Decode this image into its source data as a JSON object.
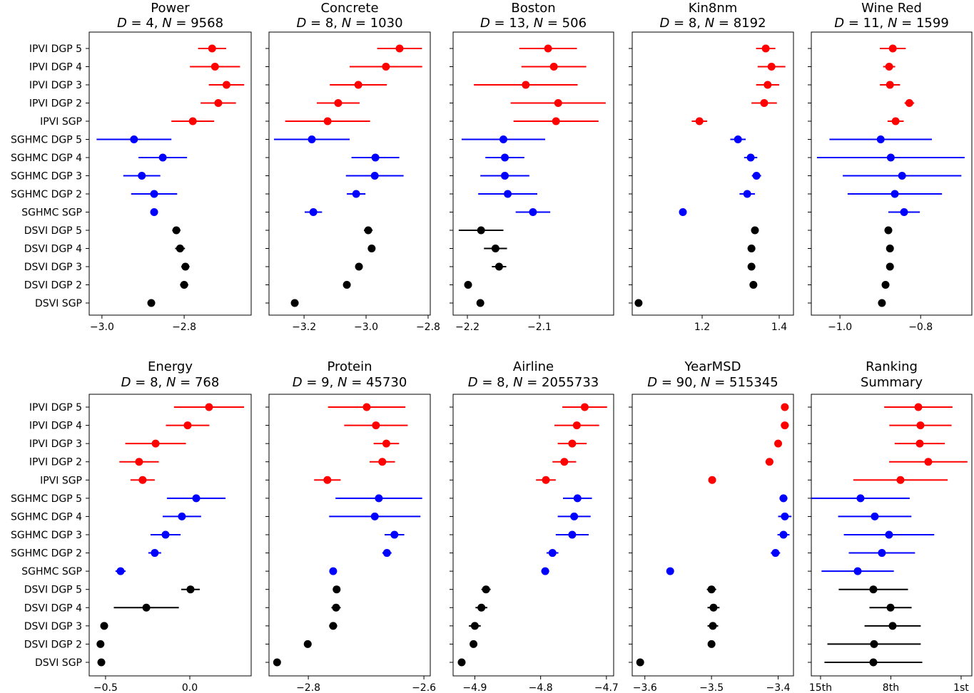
{
  "chart_data": {
    "type": "scatter",
    "subtype": "dot-with-errorbars",
    "d_symbol": "D",
    "n_symbol": "N",
    "categories": [
      "IPVI DGP 5",
      "IPVI DGP 4",
      "IPVI DGP 3",
      "IPVI DGP 2",
      "IPVI SGP",
      "SGHMC DGP 5",
      "SGHMC DGP 4",
      "SGHMC DGP 3",
      "SGHMC DGP 2",
      "SGHMC SGP",
      "DSVI DGP 5",
      "DSVI DGP 4",
      "DSVI DGP 3",
      "DSVI DGP 2",
      "DSVI SGP"
    ],
    "group_colors": {
      "IPVI": "#ff0000",
      "SGHMC": "#0000ff",
      "DSVI": "#000000"
    },
    "panels": [
      {
        "title": "Power",
        "D": 4,
        "N": 9568,
        "xlim": [
          -3.031,
          -2.637
        ],
        "xticks": [
          -3.0,
          -2.8
        ],
        "xticklabels": [
          "−3.0",
          "−2.8"
        ],
        "values": [
          -2.732,
          -2.725,
          -2.697,
          -2.717,
          -2.779,
          -2.922,
          -2.852,
          -2.903,
          -2.873,
          -2.873,
          -2.819,
          -2.81,
          -2.797,
          -2.8,
          -2.88
        ],
        "errors": [
          0.034,
          0.061,
          0.043,
          0.043,
          0.052,
          0.091,
          0.059,
          0.045,
          0.056,
          0.008,
          0.01,
          0.012,
          0.01,
          0.01,
          0.008
        ]
      },
      {
        "title": "Concrete",
        "D": 8,
        "N": 1030,
        "xlim": [
          -3.313,
          -2.793
        ],
        "xticks": [
          -3.2,
          -3.0,
          -2.8
        ],
        "xticklabels": [
          "−3.2",
          "−3.0",
          "−2.8"
        ],
        "values": [
          -2.892,
          -2.936,
          -3.025,
          -3.09,
          -3.124,
          -3.175,
          -2.97,
          -2.972,
          -3.032,
          -3.17,
          -2.993,
          -2.982,
          -3.023,
          -3.062,
          -3.23
        ],
        "errors": [
          0.072,
          0.117,
          0.092,
          0.069,
          0.137,
          0.122,
          0.077,
          0.093,
          0.03,
          0.028,
          0.014,
          0.01,
          0.01,
          0.01,
          0.008
        ]
      },
      {
        "title": "Boston",
        "D": 13,
        "N": 506,
        "xlim": [
          -2.2198,
          -1.997
        ],
        "xticks": [
          -2.2,
          -2.1
        ],
        "xticklabels": [
          "−2.2",
          "−2.1"
        ],
        "values": [
          -2.088,
          -2.08,
          -2.119,
          -2.074,
          -2.077,
          -2.15,
          -2.148,
          -2.148,
          -2.144,
          -2.109,
          -2.181,
          -2.161,
          -2.156,
          -2.199,
          -2.182
        ],
        "errors": [
          0.04,
          0.045,
          0.072,
          0.066,
          0.059,
          0.058,
          0.027,
          0.034,
          0.041,
          0.024,
          0.031,
          0.016,
          0.01,
          0.005,
          0.004
        ]
      },
      {
        "title": "Kin8nm",
        "D": 8,
        "N": 8192,
        "xlim": [
          1.0185,
          1.437
        ],
        "xticks": [
          1.2,
          1.4
        ],
        "xticklabels": [
          "1.2",
          "1.4"
        ],
        "values": [
          1.365,
          1.38,
          1.37,
          1.361,
          1.193,
          1.293,
          1.326,
          1.341,
          1.317,
          1.15,
          1.337,
          1.328,
          1.328,
          1.333,
          1.035
        ],
        "errors": [
          0.025,
          0.036,
          0.03,
          0.033,
          0.02,
          0.02,
          0.017,
          0.012,
          0.02,
          0.004,
          0.008,
          0.01,
          0.008,
          0.006,
          0.004
        ]
      },
      {
        "title": "Wine Red",
        "D": 11,
        "N": 1599,
        "xlim": [
          -1.071,
          -0.673
        ],
        "xticks": [
          -1.0,
          -0.8
        ],
        "xticklabels": [
          "−1.0",
          "−0.8"
        ],
        "values": [
          -0.869,
          -0.878,
          -0.876,
          -0.828,
          -0.862,
          -0.899,
          -0.874,
          -0.846,
          -0.864,
          -0.841,
          -0.88,
          -0.876,
          -0.876,
          -0.887,
          -0.896
        ],
        "errors": [
          0.032,
          0.015,
          0.025,
          0.012,
          0.02,
          0.127,
          0.183,
          0.147,
          0.117,
          0.039,
          0.008,
          0.008,
          0.008,
          0.008,
          0.008
        ]
      },
      {
        "title": "Energy",
        "D": 8,
        "N": 768,
        "xlim": [
          -0.597,
          0.364
        ],
        "xticks": [
          -0.5,
          0.0
        ],
        "xticklabels": [
          "−0.5",
          "0.0"
        ],
        "values": [
          0.114,
          -0.013,
          -0.203,
          -0.301,
          -0.28,
          0.038,
          -0.047,
          -0.144,
          -0.208,
          -0.411,
          0.004,
          -0.258,
          -0.508,
          -0.53,
          -0.525
        ],
        "errors": [
          0.208,
          0.129,
          0.18,
          0.117,
          0.072,
          0.174,
          0.114,
          0.089,
          0.038,
          0.03,
          0.055,
          0.193,
          0.02,
          0.01,
          0.01
        ]
      },
      {
        "title": "Protein",
        "D": 9,
        "N": 45730,
        "xlim": [
          -2.868,
          -2.589
        ],
        "xticks": [
          -2.8,
          -2.6
        ],
        "xticklabels": [
          "−2.8",
          "−2.6"
        ],
        "values": [
          -2.699,
          -2.683,
          -2.665,
          -2.672,
          -2.767,
          -2.678,
          -2.685,
          -2.651,
          -2.664,
          -2.757,
          -2.751,
          -2.752,
          -2.757,
          -2.801,
          -2.854
        ],
        "errors": [
          0.067,
          0.055,
          0.022,
          0.022,
          0.023,
          0.075,
          0.079,
          0.017,
          0.008,
          0.006,
          0.006,
          0.008,
          0.007,
          0.005,
          0.005
        ]
      },
      {
        "title": "Airline",
        "D": 8,
        "N": 2055733,
        "xlim": [
          -4.933,
          -4.689
        ],
        "xticks": [
          -4.9,
          -4.8,
          -4.7
        ],
        "xticklabels": [
          "−4.9",
          "−4.8",
          "−4.7"
        ],
        "values": [
          -4.733,
          -4.745,
          -4.752,
          -4.764,
          -4.792,
          -4.744,
          -4.749,
          -4.752,
          -4.782,
          -4.793,
          -4.883,
          -4.89,
          -4.9,
          -4.902,
          -4.92
        ],
        "errors": [
          0.034,
          0.034,
          0.022,
          0.018,
          0.015,
          0.022,
          0.025,
          0.025,
          0.009,
          0.006,
          0.007,
          0.009,
          0.009,
          0.005,
          0.005
        ]
      },
      {
        "title": "YearMSD",
        "D": 90,
        "N": 515345,
        "xlim": [
          -3.619,
          -3.377
        ],
        "xticks": [
          -3.6,
          -3.5,
          -3.4
        ],
        "xticklabels": [
          "−3.6",
          "−3.5",
          "−3.4"
        ],
        "values": [
          -3.39,
          -3.39,
          -3.4,
          -3.413,
          -3.499,
          -3.392,
          -3.39,
          -3.392,
          -3.404,
          -3.562,
          -3.5,
          -3.497,
          -3.498,
          -3.5,
          -3.607
        ],
        "errors": [
          0.004,
          0.006,
          0.005,
          0.006,
          0.004,
          0.006,
          0.01,
          0.009,
          0.007,
          0.004,
          0.007,
          0.009,
          0.008,
          0.005,
          0.005
        ]
      },
      {
        "title": "Ranking",
        "title2": "Summary",
        "xlim": [
          15.92,
          -0.07
        ],
        "xticks": [
          15,
          8,
          1
        ],
        "xticklabels": [
          "15th",
          "8th",
          "1st"
        ],
        "values": [
          5.26,
          5.05,
          5.12,
          4.27,
          7.04,
          11.02,
          9.6,
          8.18,
          8.89,
          11.3,
          9.74,
          8.03,
          7.82,
          9.67,
          9.74
        ],
        "errors": [
          3.4,
          3.1,
          2.5,
          3.9,
          4.7,
          4.9,
          3.65,
          4.5,
          3.3,
          3.6,
          3.45,
          2.1,
          2.8,
          4.65,
          4.87
        ]
      }
    ]
  }
}
